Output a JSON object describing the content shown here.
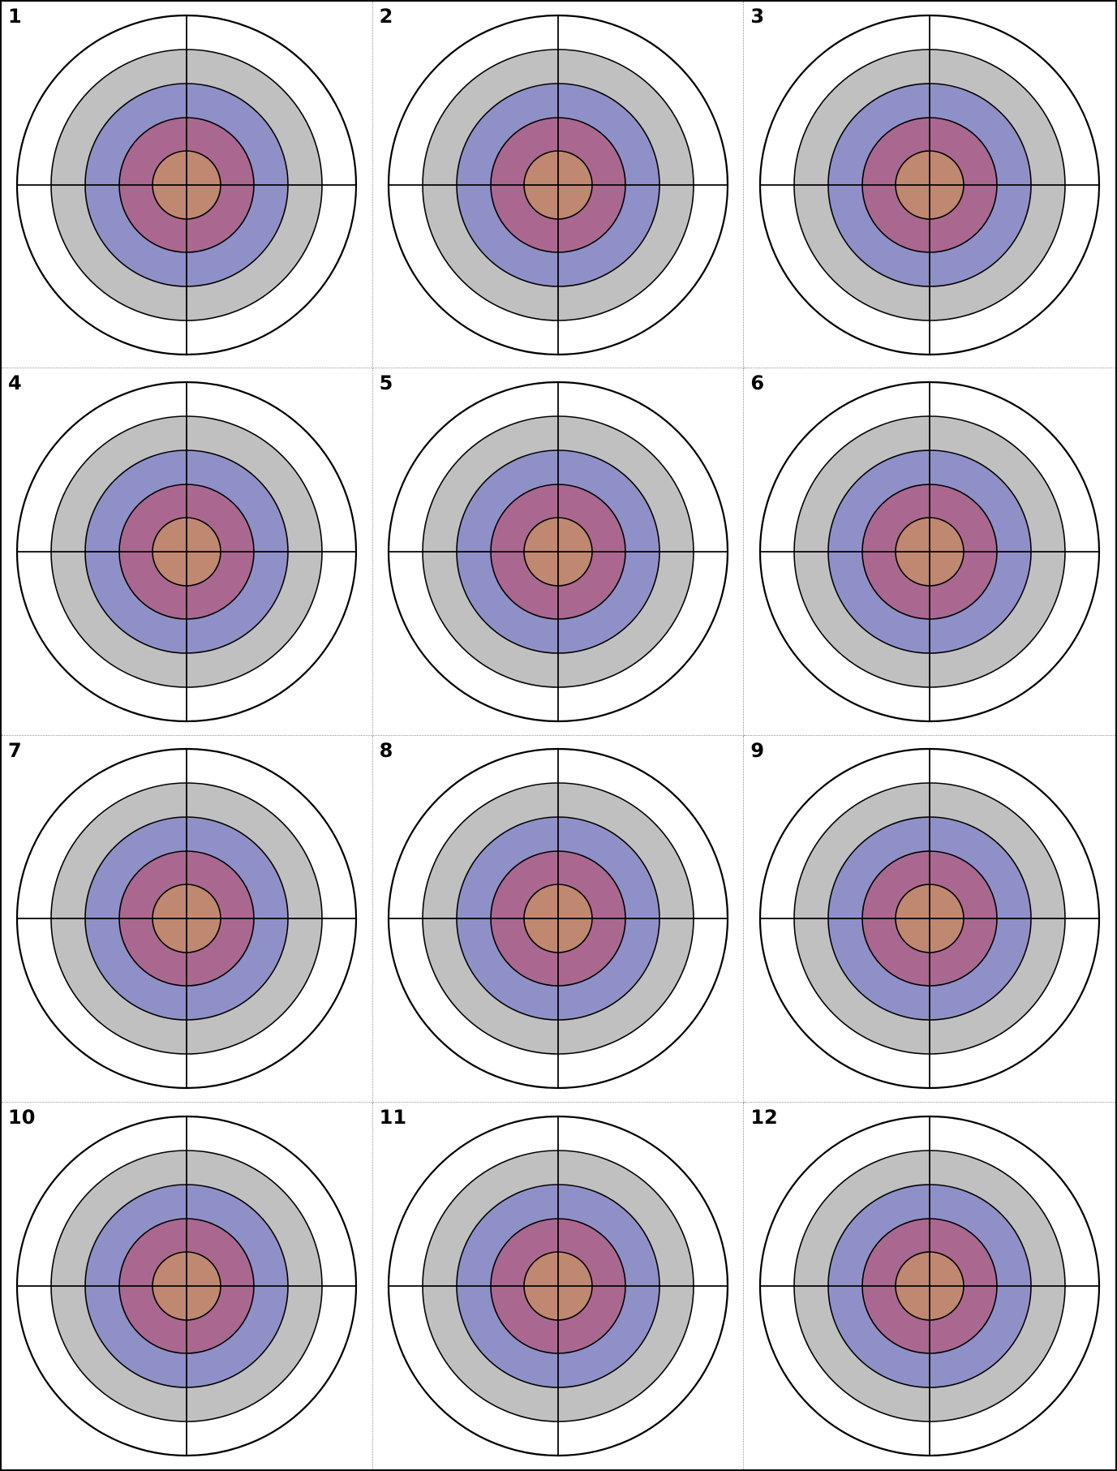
{
  "targets": [
    {
      "label": "1"
    },
    {
      "label": "2"
    },
    {
      "label": "3"
    },
    {
      "label": "4"
    },
    {
      "label": "5"
    },
    {
      "label": "6"
    },
    {
      "label": "7"
    },
    {
      "label": "8"
    },
    {
      "label": "9"
    },
    {
      "label": "10"
    },
    {
      "label": "11"
    },
    {
      "label": "12"
    }
  ],
  "ring_colors": {
    "outer": "#ffffff",
    "ring_2": "#c0c0c0",
    "ring_3": "#9090c8",
    "ring_4": "#aa6890",
    "bullseye": "#c08870"
  },
  "line_color": "#000000"
}
